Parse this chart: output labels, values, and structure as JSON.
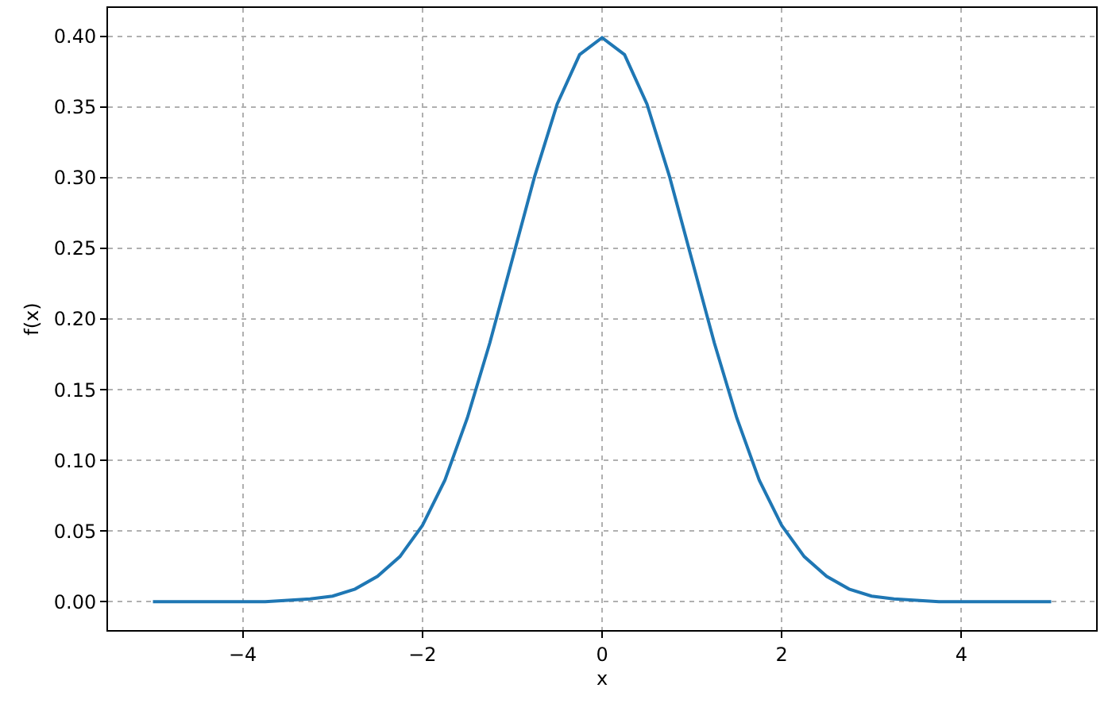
{
  "chart_data": {
    "type": "line",
    "xlabel": "x",
    "ylabel": "f(x)",
    "x": [
      -5,
      -4.75,
      -4.5,
      -4.25,
      -4,
      -3.75,
      -3.5,
      -3.25,
      -3,
      -2.75,
      -2.5,
      -2.25,
      -2,
      -1.75,
      -1.5,
      -1.25,
      -1,
      -0.75,
      -0.5,
      -0.25,
      0,
      0.25,
      0.5,
      0.75,
      1,
      1.25,
      1.5,
      1.75,
      2,
      2.25,
      2.5,
      2.75,
      3,
      3.25,
      3.5,
      3.75,
      4,
      4.25,
      4.5,
      4.75,
      5
    ],
    "series": [
      {
        "color": "#1f77b4",
        "values": [
          0,
          0,
          0,
          0,
          0,
          0,
          0.001,
          0.002,
          0.004,
          0.009,
          0.018,
          0.032,
          0.054,
          0.086,
          0.13,
          0.183,
          0.242,
          0.301,
          0.352,
          0.387,
          0.399,
          0.387,
          0.352,
          0.301,
          0.242,
          0.183,
          0.13,
          0.086,
          0.054,
          0.032,
          0.018,
          0.009,
          0.004,
          0.002,
          0.001,
          0,
          0,
          0,
          0,
          0,
          0
        ]
      }
    ],
    "xlim": [
      -5.5,
      5.5
    ],
    "xticks": [
      {
        "value": -4,
        "label": "−4"
      },
      {
        "value": -2,
        "label": "−2"
      },
      0,
      2,
      4
    ],
    "ylim": [
      -0.02,
      0.42
    ],
    "yticks": [
      {
        "value": 0,
        "label": "0.00"
      },
      {
        "value": 0.05,
        "label": "0.05"
      },
      {
        "value": 0.1,
        "label": "0.10"
      },
      {
        "value": 0.15,
        "label": "0.15"
      },
      {
        "value": 0.2,
        "label": "0.20"
      },
      {
        "value": 0.25,
        "label": "0.25"
      },
      {
        "value": 0.3,
        "label": "0.30"
      },
      {
        "value": 0.35,
        "label": "0.35"
      },
      {
        "value": 0.4,
        "label": "0.40"
      }
    ],
    "grid": true,
    "line_style": "solid",
    "marker": "none"
  }
}
